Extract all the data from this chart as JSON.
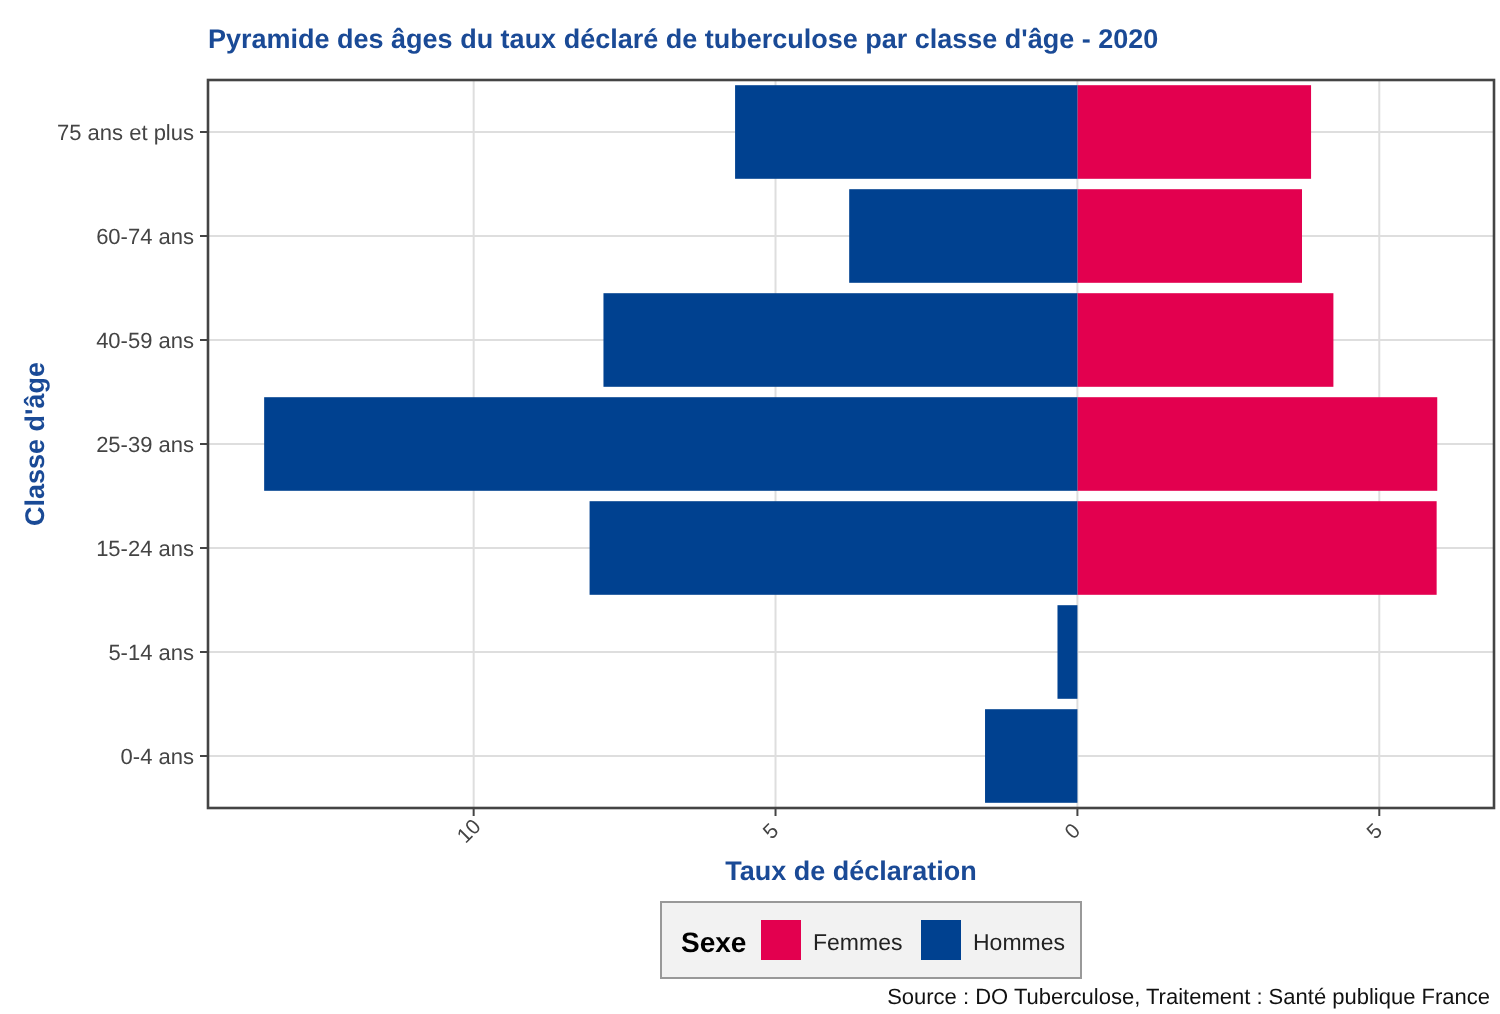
{
  "chart_data": {
    "type": "bar",
    "orientation": "horizontal",
    "stacked": true,
    "title": "Pyramide des âges du taux déclaré de tuberculose par classe d'âge - 2020",
    "xlabel": "Taux de déclaration",
    "ylabel": "Classe d'âge",
    "legend_title": "Sexe",
    "categories": [
      "75 ans et plus",
      "60-74 ans",
      "40-59 ans",
      "25-39 ans",
      "15-24 ans",
      "5-14 ans",
      "0-4 ans"
    ],
    "series": [
      {
        "name": "Femmes",
        "color": "#e3004f",
        "values": [
          3.87,
          3.72,
          4.24,
          5.96,
          5.95,
          0,
          0
        ]
      },
      {
        "name": "Hommes",
        "color": "#004190",
        "values": [
          -5.67,
          -3.78,
          -7.85,
          -13.47,
          -8.08,
          -0.33,
          -1.53
        ]
      }
    ],
    "xlim": [
      -14.4,
      6.9
    ],
    "xticks": [
      {
        "value": -10,
        "label": "10"
      },
      {
        "value": -5,
        "label": "5"
      },
      0,
      5
    ],
    "grid": true,
    "legend": "bottom",
    "annotations": [
      "Source : DO Tuberculose, Traitement : Santé publique France"
    ]
  }
}
